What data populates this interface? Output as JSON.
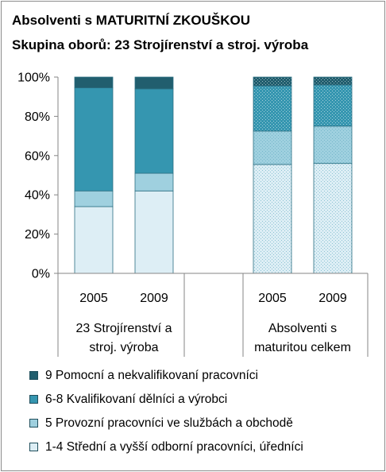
{
  "title_line1": "Absolventi s MATURITNÍ ZKOUŠKOU",
  "title_line2": "Skupina oborů: 23 Strojírenství a stroj. výroba",
  "chart_data": {
    "type": "bar",
    "stacked": true,
    "y_unit": "%",
    "ylim": [
      0,
      100
    ],
    "y_ticks": [
      "0%",
      "20%",
      "40%",
      "60%",
      "80%",
      "100%"
    ],
    "grid": false,
    "legend_position": "bottom",
    "groups": [
      {
        "label_lines": [
          "23 Strojírenství a",
          "stroj. výroba"
        ],
        "categories": [
          "2005",
          "2009"
        ]
      },
      {
        "label_lines": [
          "Absolventi s",
          "maturitou celkem"
        ],
        "categories": [
          "2005",
          "2009"
        ]
      }
    ],
    "series": [
      {
        "name": "1-4 Střední a vyšší odborní pracovníci, úředníci",
        "color": "#ddeef5",
        "pattern_on_group": [
          false,
          true
        ],
        "values": [
          34,
          42,
          55.5,
          56
        ]
      },
      {
        "name": "5 Provozní pracovníci ve službách a obchodě",
        "color": "#9fd0df",
        "pattern_on_group": [
          false,
          true
        ],
        "values": [
          8,
          9,
          17,
          19
        ]
      },
      {
        "name": "6-8 Kvalifikovaní dělníci a výrobci",
        "color": "#3596b0",
        "pattern_on_group": [
          false,
          true
        ],
        "values": [
          52.5,
          43,
          23,
          21
        ]
      },
      {
        "name": "9 Pomocní a nekvalifikovaní pracovníci",
        "color": "#215e6e",
        "pattern_on_group": [
          false,
          true
        ],
        "values": [
          5.5,
          6,
          4.5,
          4
        ]
      }
    ]
  },
  "legend_order": [
    3,
    2,
    1,
    0
  ]
}
